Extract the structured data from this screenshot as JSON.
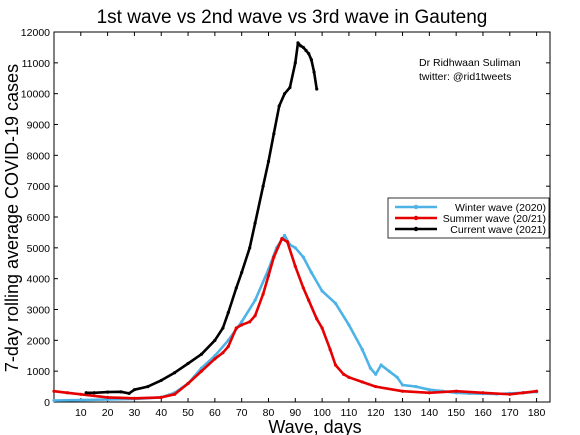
{
  "chart_data": {
    "type": "line",
    "title": "1st wave vs 2nd wave vs 3rd wave in Gauteng",
    "xlabel": "Wave, days",
    "ylabel": "7-day rolling average COVID-19 cases",
    "xlim": [
      0,
      185
    ],
    "ylim": [
      0,
      12000
    ],
    "xticks": [
      10,
      20,
      30,
      40,
      50,
      60,
      70,
      80,
      90,
      100,
      110,
      120,
      130,
      140,
      150,
      160,
      170,
      180
    ],
    "yticks": [
      0,
      1000,
      2000,
      3000,
      4000,
      5000,
      6000,
      7000,
      8000,
      9000,
      10000,
      11000,
      12000
    ],
    "grid": false,
    "legend_position": "right",
    "annotations": [
      "Dr Ridhwaan Suliman",
      "twitter: @rid1tweets"
    ],
    "series": [
      {
        "name": "Winter wave (2020)",
        "color": "#4db3e6",
        "x": [
          0,
          10,
          20,
          30,
          40,
          45,
          50,
          55,
          60,
          65,
          70,
          75,
          80,
          83,
          86,
          88,
          90,
          93,
          96,
          100,
          105,
          110,
          115,
          118,
          120,
          122,
          125,
          128,
          130,
          135,
          140,
          145,
          150,
          155,
          160,
          165,
          170,
          175,
          180
        ],
        "y": [
          50,
          60,
          80,
          100,
          150,
          300,
          600,
          1100,
          1500,
          2000,
          2600,
          3300,
          4300,
          5000,
          5400,
          5100,
          5000,
          4700,
          4200,
          3600,
          3200,
          2500,
          1700,
          1100,
          900,
          1200,
          1000,
          800,
          550,
          500,
          400,
          350,
          300,
          280,
          270,
          260,
          280,
          300,
          330
        ]
      },
      {
        "name": "Summer wave (20/21)",
        "color": "#e60000",
        "x": [
          0,
          5,
          10,
          20,
          30,
          40,
          45,
          50,
          55,
          60,
          63,
          65,
          68,
          70,
          73,
          75,
          78,
          80,
          82,
          85,
          87,
          90,
          93,
          95,
          98,
          100,
          103,
          105,
          108,
          110,
          115,
          120,
          130,
          140,
          150,
          160,
          170,
          175,
          180
        ],
        "y": [
          350,
          300,
          250,
          150,
          120,
          150,
          250,
          600,
          1000,
          1400,
          1600,
          1800,
          2400,
          2500,
          2600,
          2800,
          3500,
          4100,
          4700,
          5300,
          5200,
          4400,
          3700,
          3300,
          2700,
          2400,
          1700,
          1200,
          900,
          800,
          650,
          500,
          350,
          300,
          350,
          300,
          250,
          300,
          350
        ]
      },
      {
        "name": "Current wave (2021)",
        "color": "#000000",
        "x": [
          12,
          15,
          20,
          25,
          28,
          30,
          35,
          40,
          45,
          50,
          55,
          60,
          63,
          65,
          68,
          70,
          73,
          75,
          78,
          80,
          82,
          84,
          86,
          88,
          90,
          91,
          92,
          93,
          94,
          95,
          96,
          97,
          98
        ],
        "y": [
          300,
          300,
          320,
          330,
          280,
          400,
          500,
          700,
          950,
          1250,
          1550,
          2000,
          2400,
          2900,
          3700,
          4200,
          5000,
          5800,
          7000,
          7800,
          8700,
          9600,
          10000,
          10200,
          11000,
          11650,
          11550,
          11500,
          11400,
          11300,
          11100,
          10700,
          10150
        ]
      }
    ]
  }
}
